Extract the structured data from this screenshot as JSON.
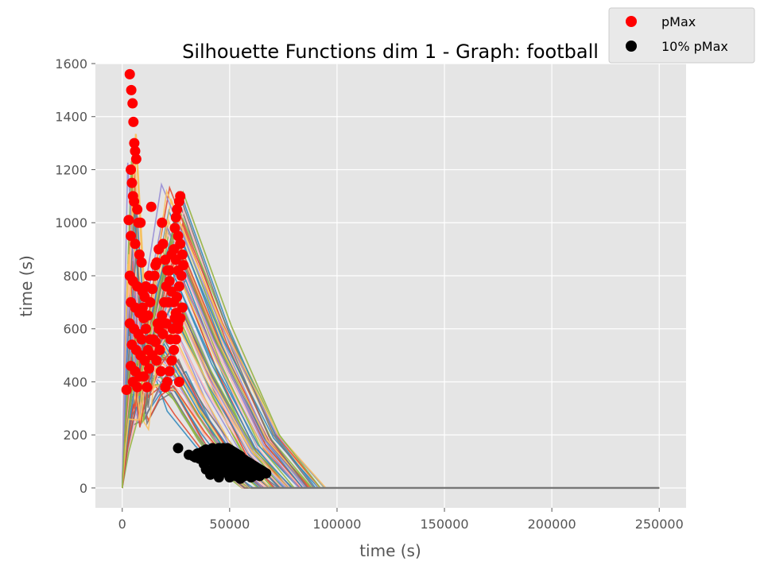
{
  "chart_data": {
    "type": "line",
    "title": "Silhouette Functions dim 1 - Graph:  football",
    "xlabel": "time (s)",
    "ylabel": "time (s)",
    "xlim": [
      -12500,
      262500
    ],
    "ylim": [
      -75,
      1600
    ],
    "x_ticks": [
      0,
      50000,
      100000,
      150000,
      200000,
      250000
    ],
    "y_ticks": [
      0,
      200,
      400,
      600,
      800,
      1000,
      1200,
      1400,
      1600
    ],
    "grid": true,
    "legend": {
      "placement": "top-right",
      "entries": [
        {
          "label": "pMax",
          "color": "#ff0000",
          "marker": "circle"
        },
        {
          "label": "10% pMax",
          "color": "#000000",
          "marker": "circle"
        }
      ]
    },
    "line_colors": [
      "#e24a33",
      "#348abd",
      "#988ed5",
      "#777777",
      "#fbc15e",
      "#8eba42",
      "#ffb5b8"
    ],
    "series": [
      {
        "name": "pMax",
        "color": "#ff0000",
        "points": [
          [
            2000,
            370
          ],
          [
            3500,
            1560
          ],
          [
            4200,
            1500
          ],
          [
            4800,
            1450
          ],
          [
            5200,
            1380
          ],
          [
            5600,
            1300
          ],
          [
            6000,
            1270
          ],
          [
            6500,
            1240
          ],
          [
            4000,
            1200
          ],
          [
            4500,
            1150
          ],
          [
            5000,
            1100
          ],
          [
            5500,
            1080
          ],
          [
            7000,
            1050
          ],
          [
            7500,
            1000
          ],
          [
            3000,
            1010
          ],
          [
            8500,
            1000
          ],
          [
            4000,
            950
          ],
          [
            6000,
            920
          ],
          [
            8000,
            880
          ],
          [
            9000,
            850
          ],
          [
            3500,
            800
          ],
          [
            5000,
            780
          ],
          [
            7000,
            760
          ],
          [
            9500,
            740
          ],
          [
            4000,
            700
          ],
          [
            6000,
            680
          ],
          [
            8000,
            660
          ],
          [
            10000,
            640
          ],
          [
            3500,
            620
          ],
          [
            5500,
            600
          ],
          [
            7500,
            580
          ],
          [
            9000,
            560
          ],
          [
            4500,
            540
          ],
          [
            6500,
            520
          ],
          [
            8500,
            500
          ],
          [
            10500,
            480
          ],
          [
            4000,
            460
          ],
          [
            6000,
            440
          ],
          [
            8000,
            420
          ],
          [
            5000,
            400
          ],
          [
            7000,
            380
          ],
          [
            11000,
            600
          ],
          [
            12000,
            650
          ],
          [
            13000,
            700
          ],
          [
            14000,
            750
          ],
          [
            15000,
            800
          ],
          [
            16000,
            850
          ],
          [
            17000,
            900
          ],
          [
            13500,
            1060
          ],
          [
            15500,
            840
          ],
          [
            18500,
            1000
          ],
          [
            19000,
            920
          ],
          [
            20000,
            860
          ],
          [
            21000,
            820
          ],
          [
            22000,
            780
          ],
          [
            23000,
            740
          ],
          [
            24000,
            700
          ],
          [
            25000,
            660
          ],
          [
            26000,
            620
          ],
          [
            27000,
            1100
          ],
          [
            26500,
            1080
          ],
          [
            25500,
            1050
          ],
          [
            25000,
            1020
          ],
          [
            24500,
            980
          ],
          [
            26000,
            950
          ],
          [
            27000,
            920
          ],
          [
            28000,
            880
          ],
          [
            28500,
            840
          ],
          [
            27500,
            800
          ],
          [
            26500,
            760
          ],
          [
            25500,
            720
          ],
          [
            28000,
            680
          ],
          [
            27000,
            640
          ],
          [
            26000,
            600
          ],
          [
            25000,
            560
          ],
          [
            24000,
            520
          ],
          [
            23000,
            480
          ],
          [
            22000,
            440
          ],
          [
            21000,
            400
          ],
          [
            20000,
            380
          ],
          [
            26500,
            400
          ],
          [
            12500,
            450
          ],
          [
            14000,
            500
          ],
          [
            15500,
            550
          ],
          [
            17000,
            600
          ],
          [
            18500,
            650
          ],
          [
            19500,
            700
          ],
          [
            12000,
            520
          ],
          [
            13000,
            560
          ],
          [
            16000,
            480
          ],
          [
            18000,
            440
          ],
          [
            10000,
            420
          ],
          [
            11500,
            380
          ],
          [
            9500,
            680
          ],
          [
            10500,
            720
          ],
          [
            11000,
            760
          ],
          [
            12500,
            800
          ],
          [
            14500,
            560
          ],
          [
            16500,
            620
          ],
          [
            17500,
            520
          ],
          [
            19000,
            580
          ],
          [
            20500,
            620
          ],
          [
            22500,
            560
          ],
          [
            23500,
            600
          ],
          [
            24500,
            640
          ],
          [
            21500,
            700
          ],
          [
            20500,
            760
          ],
          [
            22000,
            820
          ],
          [
            23000,
            880
          ],
          [
            24000,
            900
          ],
          [
            25000,
            860
          ],
          [
            26000,
            820
          ]
        ]
      },
      {
        "name": "10% pMax",
        "color": "#000000",
        "points": [
          [
            26000,
            150
          ],
          [
            31000,
            125
          ],
          [
            33000,
            120
          ],
          [
            35000,
            130
          ],
          [
            37000,
            135
          ],
          [
            38000,
            140
          ],
          [
            39000,
            145
          ],
          [
            40000,
            135
          ],
          [
            41000,
            130
          ],
          [
            42000,
            150
          ],
          [
            43000,
            145
          ],
          [
            44000,
            140
          ],
          [
            45000,
            150
          ],
          [
            46000,
            145
          ],
          [
            47000,
            150
          ],
          [
            48000,
            140
          ],
          [
            49000,
            150
          ],
          [
            50000,
            145
          ],
          [
            51000,
            140
          ],
          [
            52000,
            135
          ],
          [
            53000,
            130
          ],
          [
            54000,
            125
          ],
          [
            55000,
            120
          ],
          [
            56000,
            110
          ],
          [
            57000,
            105
          ],
          [
            58000,
            100
          ],
          [
            59000,
            95
          ],
          [
            60000,
            90
          ],
          [
            61000,
            85
          ],
          [
            62000,
            80
          ],
          [
            63000,
            75
          ],
          [
            64000,
            70
          ],
          [
            65000,
            65
          ],
          [
            66000,
            60
          ],
          [
            40000,
            110
          ],
          [
            42000,
            100
          ],
          [
            44000,
            95
          ],
          [
            46000,
            90
          ],
          [
            48000,
            85
          ],
          [
            50000,
            80
          ],
          [
            52000,
            75
          ],
          [
            54000,
            70
          ],
          [
            56000,
            65
          ],
          [
            58000,
            60
          ],
          [
            60000,
            55
          ],
          [
            62000,
            50
          ],
          [
            41000,
            50
          ],
          [
            43000,
            80
          ],
          [
            45000,
            70
          ],
          [
            47000,
            60
          ],
          [
            49000,
            55
          ],
          [
            51000,
            50
          ],
          [
            53000,
            45
          ],
          [
            55000,
            50
          ],
          [
            57000,
            45
          ],
          [
            59000,
            50
          ],
          [
            61000,
            45
          ],
          [
            44000,
            120
          ],
          [
            46000,
            115
          ],
          [
            48000,
            110
          ],
          [
            50000,
            105
          ],
          [
            52000,
            100
          ],
          [
            54000,
            95
          ],
          [
            56000,
            90
          ],
          [
            58000,
            85
          ],
          [
            60000,
            75
          ],
          [
            47000,
            125
          ],
          [
            49000,
            120
          ],
          [
            51000,
            115
          ],
          [
            53000,
            110
          ],
          [
            55000,
            100
          ],
          [
            57000,
            95
          ],
          [
            36000,
            110
          ],
          [
            38000,
            90
          ],
          [
            39000,
            70
          ],
          [
            45000,
            40
          ],
          [
            50000,
            40
          ],
          [
            55000,
            35
          ],
          [
            60000,
            40
          ],
          [
            64000,
            45
          ],
          [
            67000,
            55
          ],
          [
            34000,
            115
          ],
          [
            43000,
            60
          ],
          [
            48000,
            70
          ]
        ]
      }
    ]
  }
}
